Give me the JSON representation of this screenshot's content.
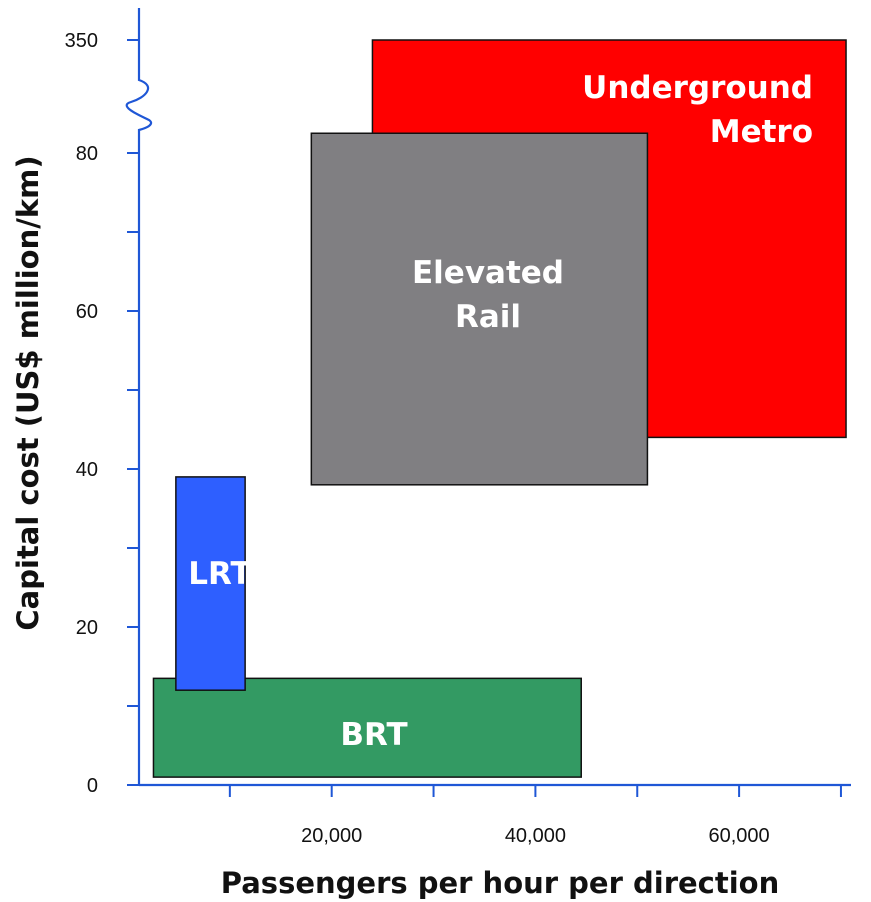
{
  "chart_data": {
    "type": "area",
    "xlabel": "Passengers per hour per direction",
    "ylabel": "Capital cost (US$ million/km)",
    "xlim": [
      0,
      70000
    ],
    "ylim": [
      0,
      80
    ],
    "y_axis_break": {
      "between": [
        80,
        350
      ]
    },
    "x_ticks": [
      {
        "value": 20000,
        "label": "20,000"
      },
      {
        "value": 40000,
        "label": "40,000"
      },
      {
        "value": 60000,
        "label": "60,000"
      }
    ],
    "x_minor_ticks": [
      10000,
      30000,
      50000,
      70000
    ],
    "y_ticks": [
      {
        "value": 0,
        "label": "0"
      },
      {
        "value": 20,
        "label": "20"
      },
      {
        "value": 40,
        "label": "40"
      },
      {
        "value": 60,
        "label": "60"
      },
      {
        "value": 80,
        "label": "80"
      },
      {
        "value": 350,
        "label": "350"
      }
    ],
    "y_minor_ticks": [
      10,
      30,
      50,
      70
    ],
    "ranges": [
      {
        "name": "Underground Metro",
        "label_lines": [
          "Underground",
          "Metro"
        ],
        "x_min": 24000,
        "x_max": 70500,
        "y_min": 44,
        "y_max": 350,
        "color": "#ff0000"
      },
      {
        "name": "Elevated Rail",
        "label_lines": [
          "Elevated",
          "Rail"
        ],
        "x_min": 18000,
        "x_max": 51000,
        "y_min": 38,
        "y_max": 82.5,
        "color": "#807f82"
      },
      {
        "name": "BRT",
        "label_lines": [
          "BRT"
        ],
        "x_min": 2500,
        "x_max": 44500,
        "y_min": 1,
        "y_max": 13.5,
        "color": "#339a63"
      },
      {
        "name": "LRT",
        "label_lines": [
          "LRT"
        ],
        "x_min": 4700,
        "x_max": 11500,
        "y_min": 12,
        "y_max": 39,
        "color": "#2e5fff"
      }
    ],
    "axis_color": "#1f57d6",
    "grid": false,
    "legend": "none"
  }
}
